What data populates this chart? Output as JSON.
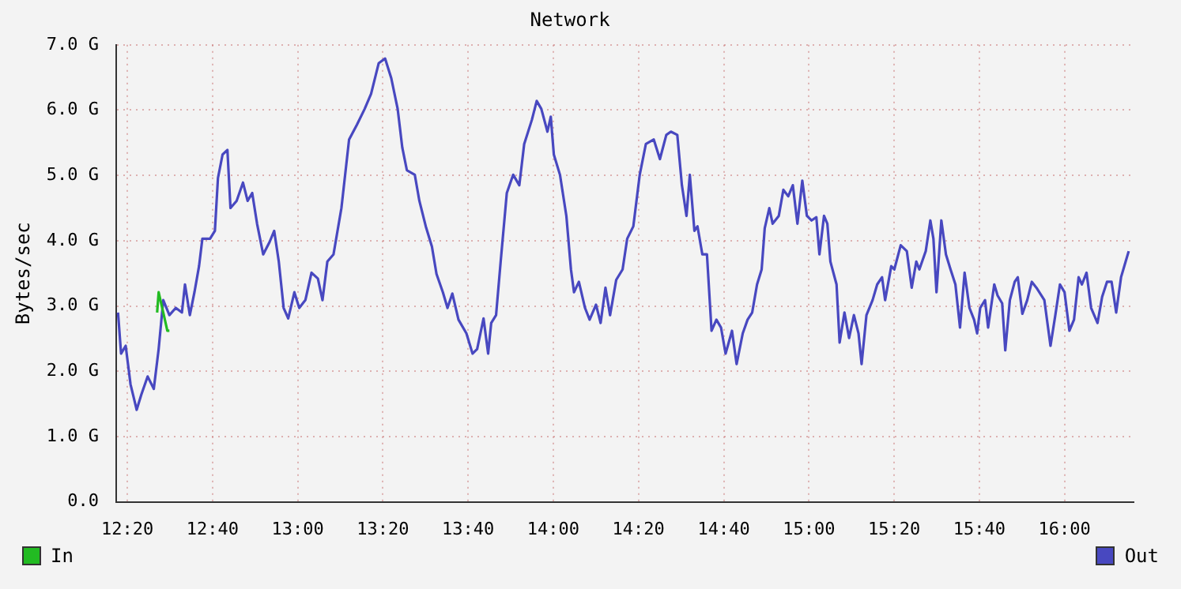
{
  "chart_data": {
    "type": "line",
    "title": "Network",
    "ylabel": "Bytes/sec",
    "xlim": [
      12.29,
      16.27
    ],
    "xticks": [
      {
        "value": 12.3333,
        "label": "12:20"
      },
      {
        "value": 12.6667,
        "label": "12:40"
      },
      {
        "value": 13,
        "label": "13:00"
      },
      {
        "value": 13.3333,
        "label": "13:20"
      },
      {
        "value": 13.6667,
        "label": "13:40"
      },
      {
        "value": 14,
        "label": "14:00"
      },
      {
        "value": 14.3333,
        "label": "14:20"
      },
      {
        "value": 14.6667,
        "label": "14:40"
      },
      {
        "value": 15,
        "label": "15:00"
      },
      {
        "value": 15.3333,
        "label": "15:20"
      },
      {
        "value": 15.6667,
        "label": "15:40"
      },
      {
        "value": 16,
        "label": "16:00"
      }
    ],
    "ylim": [
      0,
      7
    ],
    "yticks": [
      {
        "value": 0,
        "label": "0.0"
      },
      {
        "value": 1,
        "label": "1.0 G"
      },
      {
        "value": 2,
        "label": "2.0 G"
      },
      {
        "value": 3,
        "label": "3.0 G"
      },
      {
        "value": 4,
        "label": "4.0 G"
      },
      {
        "value": 5,
        "label": "5.0 G"
      },
      {
        "value": 6,
        "label": "6.0 G"
      },
      {
        "value": 7,
        "label": "7.0 G"
      }
    ],
    "grid": true,
    "legend": "bottom",
    "marker": "none",
    "line_style": "solid",
    "series": [
      {
        "name": "In",
        "color": "#22bb22",
        "x": [
          12.45,
          12.456,
          12.474,
          12.49,
          12.498
        ],
        "values": [
          2.9,
          3.21,
          2.9,
          2.62,
          2.62
        ]
      },
      {
        "name": "Out",
        "color": "#4848c0",
        "x": [
          12.297,
          12.309,
          12.327,
          12.346,
          12.37,
          12.388,
          12.413,
          12.437,
          12.456,
          12.474,
          12.498,
          12.523,
          12.547,
          12.559,
          12.578,
          12.596,
          12.614,
          12.627,
          12.657,
          12.676,
          12.688,
          12.706,
          12.725,
          12.737,
          12.761,
          12.786,
          12.804,
          12.822,
          12.841,
          12.865,
          12.89,
          12.908,
          12.926,
          12.945,
          12.963,
          12.987,
          13.006,
          13.03,
          13.054,
          13.079,
          13.097,
          13.116,
          13.14,
          13.171,
          13.201,
          13.232,
          13.262,
          13.287,
          13.317,
          13.342,
          13.366,
          13.391,
          13.409,
          13.427,
          13.458,
          13.476,
          13.501,
          13.525,
          13.543,
          13.568,
          13.586,
          13.605,
          13.629,
          13.66,
          13.684,
          13.702,
          13.727,
          13.745,
          13.757,
          13.776,
          13.794,
          13.818,
          13.843,
          13.867,
          13.886,
          13.916,
          13.935,
          13.953,
          13.977,
          13.99,
          14.002,
          14.026,
          14.051,
          14.069,
          14.081,
          14.1,
          14.124,
          14.142,
          14.167,
          14.185,
          14.204,
          14.222,
          14.246,
          14.271,
          14.289,
          14.313,
          14.338,
          14.362,
          14.393,
          14.417,
          14.442,
          14.46,
          14.485,
          14.503,
          14.521,
          14.534,
          14.552,
          14.564,
          14.583,
          14.601,
          14.619,
          14.638,
          14.656,
          14.674,
          14.699,
          14.717,
          14.741,
          14.76,
          14.778,
          14.797,
          14.815,
          14.827,
          14.845,
          14.858,
          14.882,
          14.9,
          14.919,
          14.937,
          14.955,
          14.974,
          14.992,
          15.01,
          15.029,
          15.041,
          15.059,
          15.072,
          15.084,
          15.108,
          15.12,
          15.139,
          15.157,
          15.176,
          15.194,
          15.206,
          15.225,
          15.249,
          15.267,
          15.286,
          15.298,
          15.322,
          15.334,
          15.359,
          15.383,
          15.402,
          15.42,
          15.432,
          15.457,
          15.475,
          15.487,
          15.499,
          15.518,
          15.536,
          15.554,
          15.573,
          15.591,
          15.609,
          15.628,
          15.646,
          15.658,
          15.67,
          15.689,
          15.701,
          15.725,
          15.738,
          15.756,
          15.768,
          15.786,
          15.805,
          15.817,
          15.835,
          15.854,
          15.872,
          15.89,
          15.921,
          15.945,
          15.964,
          15.982,
          16.0,
          16.019,
          16.037,
          16.055,
          16.068,
          16.086,
          16.104,
          16.129,
          16.147,
          16.166,
          16.184,
          16.202,
          16.221,
          16.239,
          16.251
        ],
        "values": [
          2.9,
          2.27,
          2.39,
          1.8,
          1.41,
          1.64,
          1.92,
          1.73,
          2.34,
          3.09,
          2.86,
          2.97,
          2.9,
          3.33,
          2.86,
          3.21,
          3.61,
          4.03,
          4.03,
          4.15,
          4.96,
          5.32,
          5.39,
          4.5,
          4.61,
          4.89,
          4.61,
          4.73,
          4.26,
          3.79,
          3.98,
          4.15,
          3.68,
          2.97,
          2.81,
          3.21,
          2.97,
          3.09,
          3.51,
          3.42,
          3.09,
          3.68,
          3.79,
          4.5,
          5.55,
          5.78,
          6.02,
          6.25,
          6.72,
          6.79,
          6.49,
          6.02,
          5.43,
          5.08,
          5.01,
          4.61,
          4.22,
          3.91,
          3.49,
          3.21,
          2.97,
          3.19,
          2.79,
          2.58,
          2.27,
          2.34,
          2.81,
          2.27,
          2.74,
          2.86,
          3.68,
          4.73,
          5.01,
          4.85,
          5.48,
          5.85,
          6.14,
          6.02,
          5.67,
          5.9,
          5.32,
          5.01,
          4.38,
          3.56,
          3.21,
          3.37,
          2.97,
          2.79,
          3.02,
          2.74,
          3.28,
          2.86,
          3.4,
          3.56,
          4.03,
          4.22,
          5.01,
          5.48,
          5.55,
          5.25,
          5.62,
          5.67,
          5.62,
          4.85,
          4.38,
          5.01,
          4.15,
          4.22,
          3.79,
          3.79,
          2.62,
          2.79,
          2.67,
          2.27,
          2.62,
          2.11,
          2.58,
          2.79,
          2.9,
          3.33,
          3.56,
          4.19,
          4.5,
          4.26,
          4.38,
          4.78,
          4.68,
          4.85,
          4.26,
          4.92,
          4.38,
          4.31,
          4.36,
          3.79,
          4.38,
          4.26,
          3.68,
          3.33,
          2.44,
          2.9,
          2.51,
          2.86,
          2.58,
          2.11,
          2.86,
          3.09,
          3.33,
          3.44,
          3.09,
          3.61,
          3.56,
          3.93,
          3.84,
          3.28,
          3.68,
          3.56,
          3.84,
          4.31,
          4.03,
          3.21,
          4.31,
          3.79,
          3.56,
          3.33,
          2.67,
          3.51,
          2.97,
          2.79,
          2.58,
          2.97,
          3.09,
          2.67,
          3.33,
          3.16,
          3.04,
          2.32,
          3.09,
          3.37,
          3.44,
          2.88,
          3.09,
          3.37,
          3.28,
          3.09,
          2.39,
          2.86,
          3.33,
          3.21,
          2.62,
          2.79,
          3.44,
          3.33,
          3.51,
          2.97,
          2.74,
          3.14,
          3.37,
          3.37,
          2.9,
          3.44,
          3.68,
          3.84
        ]
      }
    ]
  }
}
